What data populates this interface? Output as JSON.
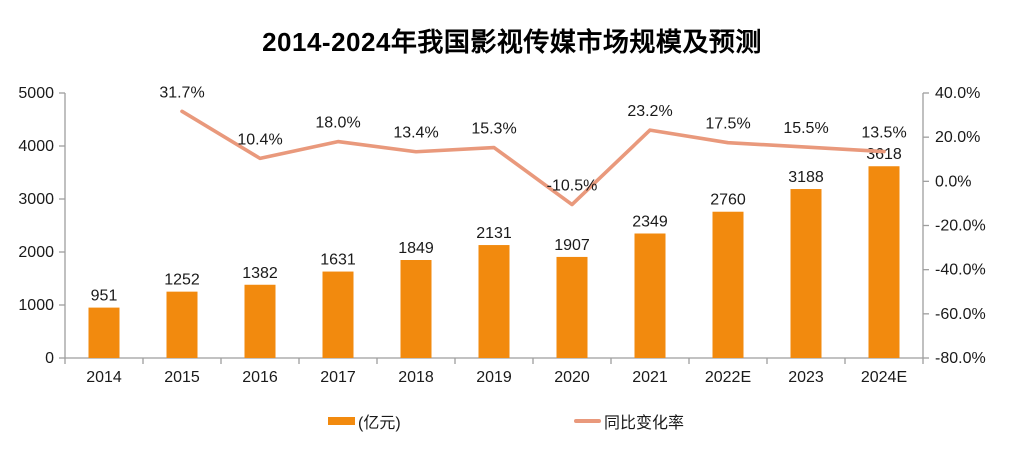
{
  "title": "2014-2024年我国影视传媒市场规模及预测",
  "legend": {
    "bar_label": "(亿元)",
    "line_label": "同比变化率"
  },
  "colors": {
    "bar": "#F28A0E",
    "line": "#E9997C",
    "axis": "#9E9E9E",
    "text": "#1A1A1A"
  },
  "chart_data": {
    "type": "combo",
    "title": "2014-2024年我国影视传媒市场规模及预测",
    "categories": [
      "2014",
      "2015",
      "2016",
      "2017",
      "2018",
      "2019",
      "2020",
      "2021",
      "2022E",
      "2023",
      "2024E"
    ],
    "series": [
      {
        "name": "(亿元)",
        "type": "bar",
        "axis": "left",
        "color": "#F28A0E",
        "values": [
          951,
          1252,
          1382,
          1631,
          1849,
          2131,
          1907,
          2349,
          2760,
          3188,
          3618
        ]
      },
      {
        "name": "同比变化率",
        "type": "line",
        "axis": "right",
        "color": "#E9997C",
        "values": [
          null,
          31.7,
          10.4,
          18.0,
          13.4,
          15.3,
          -10.5,
          23.2,
          17.5,
          15.5,
          13.5
        ]
      }
    ],
    "left_axis": {
      "min": 0,
      "max": 5000,
      "ticks": [
        "0",
        "1000",
        "2000",
        "3000",
        "4000",
        "5000"
      ]
    },
    "right_axis": {
      "min": -80,
      "max": 40,
      "ticks": [
        "-80.0%",
        "-60.0%",
        "-40.0%",
        "-20.0%",
        "0.0%",
        "20.0%",
        "40.0%"
      ]
    },
    "grid": false,
    "legend_position": "bottom"
  }
}
